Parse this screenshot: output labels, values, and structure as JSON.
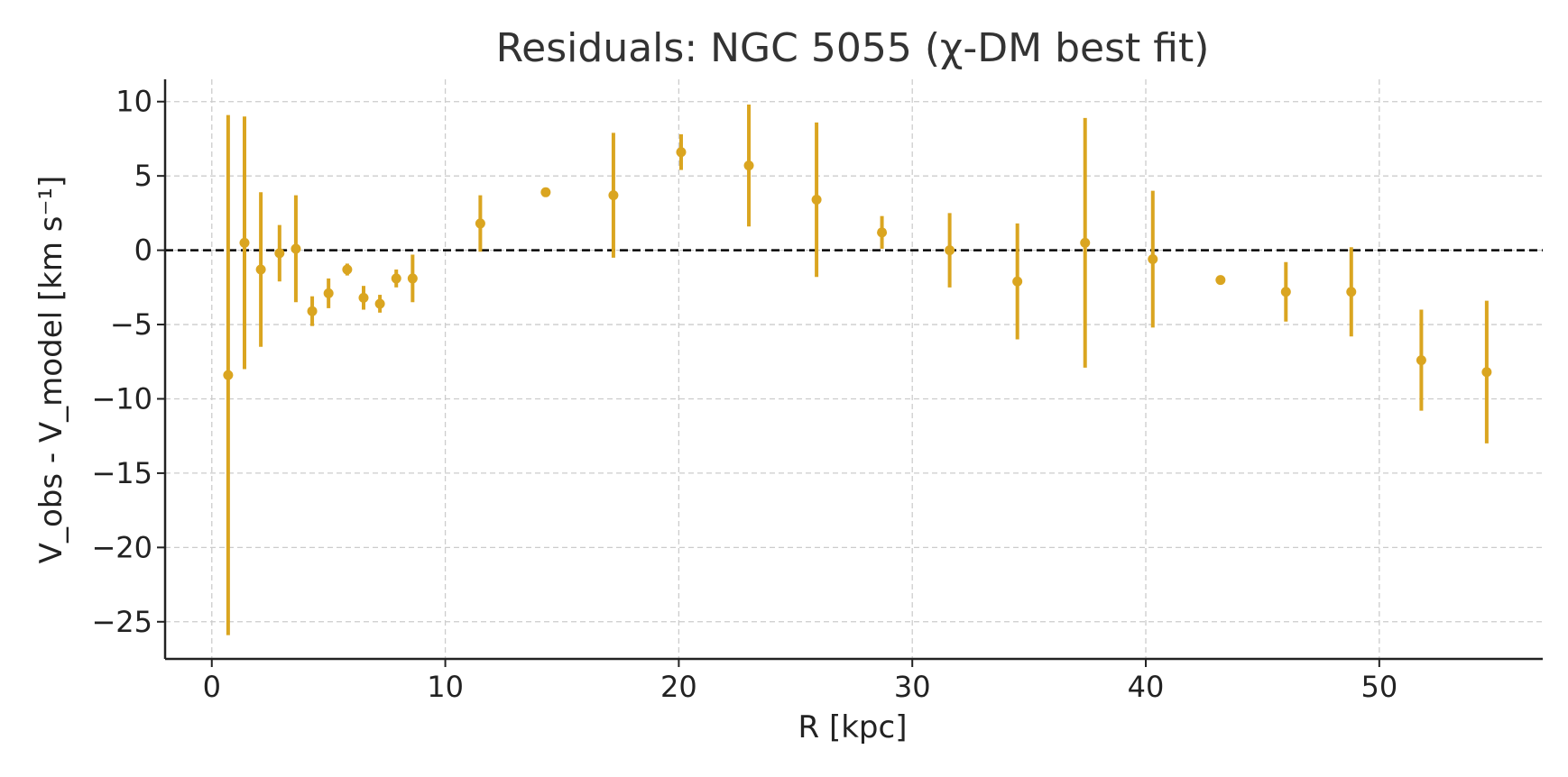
{
  "chart_data": {
    "type": "scatter",
    "title": "Residuals: NGC 5055 (χ-DM best fit)",
    "xlabel": "R [kpc]",
    "ylabel": "V_obs - V_model [km s⁻¹]",
    "xlim": [
      -2,
      57
    ],
    "ylim": [
      -27.5,
      11.5
    ],
    "xticks": [
      0,
      10,
      20,
      30,
      40,
      50
    ],
    "yticks": [
      10,
      5,
      0,
      -5,
      -10,
      -15,
      -20,
      -25
    ],
    "xtick_labels": [
      "0",
      "10",
      "20",
      "30",
      "40",
      "50"
    ],
    "ytick_labels": [
      "10",
      "5",
      "0",
      "−5",
      "−10",
      "−15",
      "−20",
      "−25"
    ],
    "grid": true,
    "zero_line": 0,
    "series": [
      {
        "points": [
          {
            "x": 0.7,
            "y": -8.4,
            "err": 17.5
          },
          {
            "x": 1.4,
            "y": 0.5,
            "err": 8.5
          },
          {
            "x": 2.1,
            "y": -1.3,
            "err": 5.2
          },
          {
            "x": 2.9,
            "y": -0.2,
            "err": 1.9
          },
          {
            "x": 3.6,
            "y": 0.1,
            "err": 3.6
          },
          {
            "x": 4.3,
            "y": -4.1,
            "err": 1.0
          },
          {
            "x": 5.0,
            "y": -2.9,
            "err": 1.0
          },
          {
            "x": 5.8,
            "y": -1.3,
            "err": 0.4
          },
          {
            "x": 6.5,
            "y": -3.2,
            "err": 0.8
          },
          {
            "x": 7.2,
            "y": -3.6,
            "err": 0.6
          },
          {
            "x": 7.9,
            "y": -1.9,
            "err": 0.6
          },
          {
            "x": 8.6,
            "y": -1.9,
            "err": 1.6
          },
          {
            "x": 11.5,
            "y": 1.8,
            "err": 1.9
          },
          {
            "x": 14.3,
            "y": 3.9,
            "err": 0.3
          },
          {
            "x": 17.2,
            "y": 3.7,
            "err": 4.2
          },
          {
            "x": 20.1,
            "y": 6.6,
            "err": 1.2
          },
          {
            "x": 23.0,
            "y": 5.7,
            "err": 4.1
          },
          {
            "x": 25.9,
            "y": 3.4,
            "err": 5.2
          },
          {
            "x": 28.7,
            "y": 1.2,
            "err": 1.1
          },
          {
            "x": 31.6,
            "y": 0.0,
            "err": 2.5
          },
          {
            "x": 34.5,
            "y": -2.1,
            "err": 3.9
          },
          {
            "x": 37.4,
            "y": 0.5,
            "err": 8.4
          },
          {
            "x": 40.3,
            "y": -0.6,
            "err": 4.6
          },
          {
            "x": 43.2,
            "y": -2.0,
            "err": 0.3
          },
          {
            "x": 46.0,
            "y": -2.8,
            "err": 2.0
          },
          {
            "x": 48.8,
            "y": -2.8,
            "err": 3.0
          },
          {
            "x": 51.8,
            "y": -7.4,
            "err": 3.4
          },
          {
            "x": 54.6,
            "y": -8.2,
            "err": 4.8
          }
        ]
      }
    ]
  },
  "colors": {
    "points": "#DAA520",
    "zero_line": "#000000",
    "grid": "#cccccc",
    "axis": "#222222"
  }
}
